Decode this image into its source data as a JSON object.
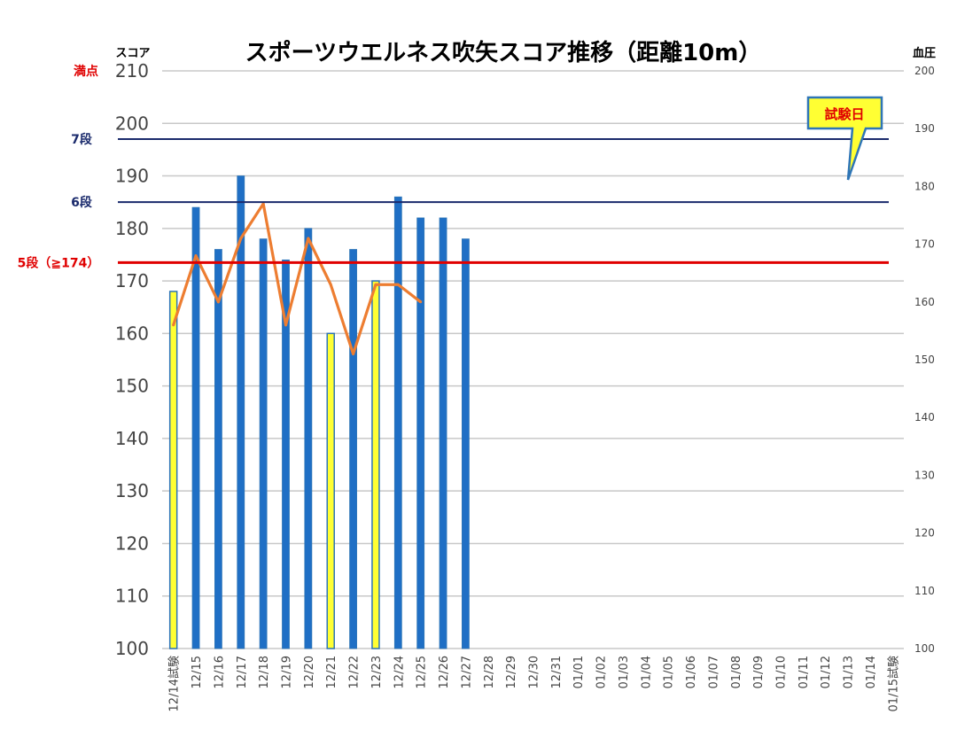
{
  "chart_data": {
    "type": "bar",
    "title": "スポーツウエルネス吹矢スコア推移（距離10m）",
    "ylabel": "スコア",
    "y2label": "血圧",
    "ylim": [
      100,
      210
    ],
    "y2lim": [
      100,
      200
    ],
    "yticks": [
      "100",
      "110",
      "120",
      "130",
      "140",
      "150",
      "160",
      "170",
      "180",
      "190",
      "200",
      "210"
    ],
    "y2ticks": [
      "100",
      "110",
      "120",
      "130",
      "140",
      "150",
      "160",
      "170",
      "180",
      "190",
      "200"
    ],
    "grid": true,
    "categories": [
      "12/14試験",
      "12/15",
      "12/16",
      "12/17",
      "12/18",
      "12/19",
      "12/20",
      "12/21",
      "12/22",
      "12/23",
      "12/24",
      "12/25",
      "12/26",
      "12/27",
      "12/28",
      "12/29",
      "12/30",
      "12/31",
      "01/01",
      "01/02",
      "01/03",
      "01/04",
      "01/05",
      "01/06",
      "01/07",
      "01/08",
      "01/09",
      "01/10",
      "01/11",
      "01/12",
      "01/13",
      "01/14",
      "01/15試験"
    ],
    "series": [
      {
        "type": "bar",
        "axis": "left",
        "values": [
          168,
          184,
          176,
          190,
          178,
          174,
          180,
          160,
          176,
          170,
          186,
          182,
          182,
          178,
          null,
          null,
          null,
          null,
          null,
          null,
          null,
          null,
          null,
          null,
          null,
          null,
          null,
          null,
          null,
          null,
          null,
          null,
          null
        ],
        "highlight": [
          true,
          false,
          false,
          false,
          false,
          false,
          false,
          true,
          false,
          true,
          false,
          false,
          false,
          false,
          false,
          false,
          false,
          false,
          false,
          false,
          false,
          false,
          false,
          false,
          false,
          false,
          false,
          false,
          false,
          false,
          false,
          false,
          false
        ],
        "color": "#1f6fc5",
        "highlight_color": "#ffff33"
      },
      {
        "type": "line",
        "axis": "right",
        "values": [
          156,
          168,
          160,
          171,
          177,
          156,
          171,
          163,
          151,
          163,
          163,
          160,
          null,
          null,
          null,
          null,
          null,
          null,
          null,
          null,
          null,
          null,
          null,
          null,
          null,
          null,
          null,
          null,
          null,
          null,
          null,
          null,
          null
        ],
        "color": "#ed7d31"
      }
    ],
    "reference_lines": [
      {
        "label": "満点",
        "value": 210,
        "color": "#e00000",
        "draw_line": false
      },
      {
        "label": "7段",
        "value": 197,
        "color": "#1a2a6c",
        "draw_line": true
      },
      {
        "label": "6段",
        "value": 185,
        "color": "#1a2a6c",
        "draw_line": true
      },
      {
        "label": "5段（≧174）",
        "value": 173.5,
        "color": "#e00000",
        "draw_line": true
      }
    ],
    "annotation": {
      "text": "試験日",
      "fill": "#ffff33",
      "border": "#2e75b6",
      "text_color": "#e00000"
    }
  }
}
